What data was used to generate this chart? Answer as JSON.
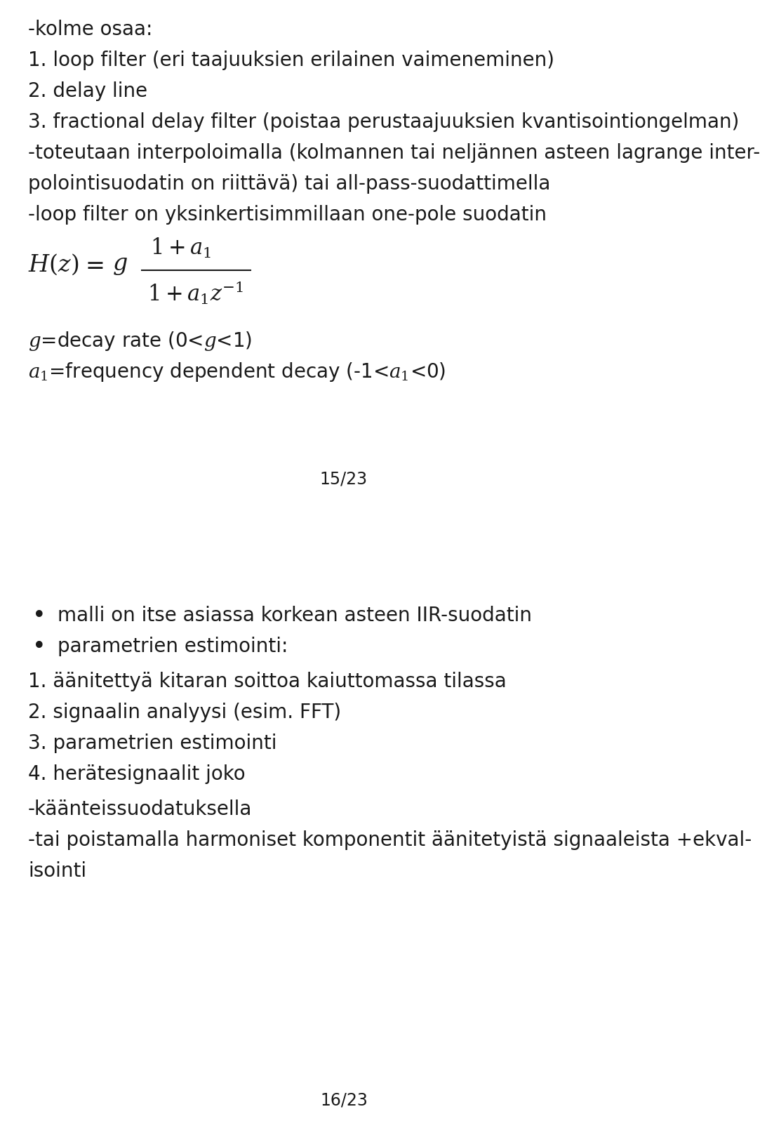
{
  "bg_color": "#ffffff",
  "text_color": "#1a1a1a",
  "font_size": 20,
  "small_font_size": 15,
  "page1_number": "15/23",
  "page2_number": "16/23",
  "lines_top": [
    "-kolme osaa:",
    "1. loop filter (eri taajuuksien erilainen vaimeneminen)",
    "2. delay line",
    "3. fractional delay filter (poistaa perustaajuuksien kvantisointiongelman)",
    "-toteutaan interpoloimalla (kolmannen tai neljännen asteen lagrange inter-",
    "polointisuodatin on riittävä) tai all-pass-suodattimella",
    "-loop filter on yksinkertisimmillaan one-pole suodatin"
  ],
  "bullet_lines": [
    "malli on itse asiassa korkean asteen IIR-suodatin",
    "parametrien estimointi:"
  ],
  "numbered_lines": [
    "1. äänitettyä kitaran soittoa kaiuttomassa tilassa",
    "2. signaalin analyysi (esim. FFT)",
    "3. parametrien estimointi",
    "4. herätesignaalit joko"
  ],
  "dash_lines": [
    "-käänteissuodatuksella",
    "-tai poistamalla harmoniset komponentit äänitetyistä signaaleista +ekval-",
    "isointi"
  ]
}
